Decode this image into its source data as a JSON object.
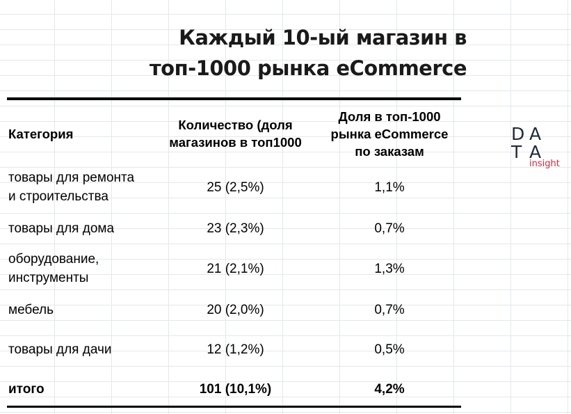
{
  "title": {
    "line1": "Каждый 10-ый магазин в",
    "line2": "топ-1000 рынка eCommerce"
  },
  "table": {
    "headers": {
      "category": "Категория",
      "count_line1": "Количество (доля",
      "count_line2": "магазинов в топ1000",
      "share_line1": "Доля в топ-1000",
      "share_line2": "рынка eCommerce",
      "share_line3": "по заказам"
    },
    "rows": [
      {
        "category_line1": "товары для ремонта",
        "category_line2": "и строительства",
        "count": "25 (2,5%)",
        "share": "1,1%"
      },
      {
        "category_line1": "товары для дома",
        "category_line2": "",
        "count": "23 (2,3%)",
        "share": "0,7%"
      },
      {
        "category_line1": "оборудование,",
        "category_line2": "инструменты",
        "count": "21 (2,1%)",
        "share": "1,3%"
      },
      {
        "category_line1": "мебель",
        "category_line2": "",
        "count": "20 (2,0%)",
        "share": "0,7%"
      },
      {
        "category_line1": "товары для дачи",
        "category_line2": "",
        "count": "12 (1,2%)",
        "share": "0,5%"
      }
    ],
    "total": {
      "category": "итого",
      "count": "101 (10,1%)",
      "share": "4,2%"
    }
  },
  "logo": {
    "letters": [
      "D",
      "A",
      "T",
      "A"
    ],
    "tagline": "insight",
    "colors": {
      "letters": "#1f2a3a",
      "tagline": "#d7283a"
    }
  }
}
